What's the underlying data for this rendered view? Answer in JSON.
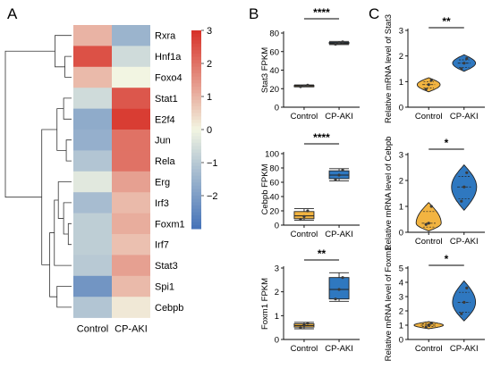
{
  "panels": {
    "a": "A",
    "b": "B",
    "c": "C"
  },
  "colors": {
    "control": "#f2b441",
    "cpaki": "#2f78c0",
    "dot": "#3a3a3a",
    "heat_low": "#4472b8",
    "heat_mid": "#f2f5e2",
    "heat_high": "#d73027"
  },
  "chart_data": [
    {
      "type": "heatmap",
      "panel": "A",
      "columns": [
        "Control",
        "CP-AKI"
      ],
      "rows": [
        "Rxra",
        "Hnf1a",
        "Foxo4",
        "Stat1",
        "E2f4",
        "Jun",
        "Rela",
        "Erg",
        "Irf3",
        "Foxm1",
        "Irf7",
        "Stat3",
        "Spi1",
        "Cebpb"
      ],
      "values": [
        [
          1.0,
          -1.5
        ],
        [
          2.5,
          -0.6
        ],
        [
          0.9,
          0.0
        ],
        [
          -0.6,
          2.4
        ],
        [
          -1.7,
          2.8
        ],
        [
          -1.6,
          2.0
        ],
        [
          -1.1,
          2.0
        ],
        [
          -0.3,
          1.3
        ],
        [
          -1.3,
          0.9
        ],
        [
          -0.9,
          1.1
        ],
        [
          -0.9,
          0.8
        ],
        [
          -1.0,
          1.3
        ],
        [
          -2.2,
          0.9
        ],
        [
          -1.1,
          0.2
        ]
      ],
      "colorbar": {
        "min": -3,
        "max": 3,
        "ticks": [
          3,
          2,
          1,
          0,
          -1,
          -2
        ]
      },
      "dendrogram": "rows"
    },
    {
      "type": "box",
      "panel": "B",
      "categories": [
        "Control",
        "CP-AKI"
      ],
      "ylabel": "Stat3  FPKM",
      "ylim": [
        0,
        80
      ],
      "yticks": [
        0,
        20,
        40,
        60,
        80
      ],
      "boxes": [
        {
          "min": 22,
          "q1": 22.5,
          "median": 23,
          "q3": 23.5,
          "max": 24,
          "points": [
            22.2,
            23,
            23.8
          ]
        },
        {
          "min": 67.5,
          "q1": 68.5,
          "median": 69,
          "q3": 70,
          "max": 71,
          "points": [
            68,
            69,
            70.5
          ]
        }
      ],
      "significance": "****"
    },
    {
      "type": "box",
      "panel": "B",
      "categories": [
        "Control",
        "CP-AKI"
      ],
      "ylabel": "Cebpb  FPKM",
      "ylim": [
        0,
        100
      ],
      "yticks": [
        0,
        20,
        40,
        60,
        80,
        100
      ],
      "boxes": [
        {
          "min": 7,
          "q1": 9,
          "median": 13,
          "q3": 19,
          "max": 23,
          "points": [
            8,
            12,
            20
          ]
        },
        {
          "min": 62,
          "q1": 65,
          "median": 70,
          "q3": 76,
          "max": 79,
          "points": [
            64,
            70,
            77
          ]
        }
      ],
      "significance": "****"
    },
    {
      "type": "box",
      "panel": "B",
      "categories": [
        "Control",
        "CP-AKI"
      ],
      "ylabel": "Foxm1  FPKM",
      "ylim": [
        0,
        3
      ],
      "yticks": [
        0,
        1,
        2,
        3
      ],
      "boxes": [
        {
          "min": 0.45,
          "q1": 0.52,
          "median": 0.58,
          "q3": 0.66,
          "max": 0.72,
          "points": [
            0.5,
            0.6,
            0.68
          ]
        },
        {
          "min": 1.6,
          "q1": 1.7,
          "median": 2.1,
          "q3": 2.6,
          "max": 2.8,
          "points": [
            1.7,
            2.1,
            2.6
          ]
        }
      ],
      "significance": "**"
    },
    {
      "type": "violin",
      "panel": "C",
      "categories": [
        "Control",
        "CP-AKI"
      ],
      "ylabel": "Relative  mRNA level of Stat3",
      "ylim": [
        0,
        3
      ],
      "yticks": [
        0,
        1,
        2,
        3
      ],
      "violins": [
        {
          "min": 0.6,
          "max": 1.15,
          "median": 0.88,
          "q1": 0.75,
          "q3": 1.0,
          "width": 0.55,
          "points": [
            0.7,
            0.88,
            1.05
          ]
        },
        {
          "min": 1.4,
          "max": 2.05,
          "median": 1.72,
          "q1": 1.55,
          "q3": 1.85,
          "width": 0.55,
          "points": [
            1.5,
            1.72,
            1.9
          ]
        }
      ],
      "significance": "**"
    },
    {
      "type": "violin",
      "panel": "C",
      "categories": [
        "Control",
        "CP-AKI"
      ],
      "ylabel": "Relative  mRNA level of Cebpb",
      "ylim": [
        0,
        3
      ],
      "yticks": [
        0,
        1,
        2,
        3
      ],
      "violins": [
        {
          "min": 0.05,
          "max": 1.15,
          "median": 0.35,
          "q1": 0.2,
          "q3": 0.8,
          "width": 0.6,
          "points": [
            0.3,
            0.35,
            1.0
          ]
        },
        {
          "min": 0.85,
          "max": 2.6,
          "median": 1.75,
          "q1": 1.3,
          "q3": 2.15,
          "width": 0.6,
          "points": [
            1.2,
            1.75,
            2.3
          ]
        }
      ],
      "significance": "*"
    },
    {
      "type": "violin",
      "panel": "C",
      "categories": [
        "Control",
        "CP-AKI"
      ],
      "ylabel": "Relative  mRNA level of Foxm1",
      "ylim": [
        0,
        5
      ],
      "yticks": [
        0,
        1,
        2,
        3,
        4,
        5
      ],
      "violins": [
        {
          "min": 0.75,
          "max": 1.25,
          "median": 1.0,
          "q1": 0.9,
          "q3": 1.1,
          "width": 0.7,
          "points": [
            0.85,
            1.0,
            1.15
          ]
        },
        {
          "min": 1.3,
          "max": 4.1,
          "median": 2.6,
          "q1": 1.9,
          "q3": 3.3,
          "width": 0.55,
          "points": [
            1.8,
            2.6,
            3.6
          ]
        }
      ],
      "significance": "*"
    }
  ]
}
